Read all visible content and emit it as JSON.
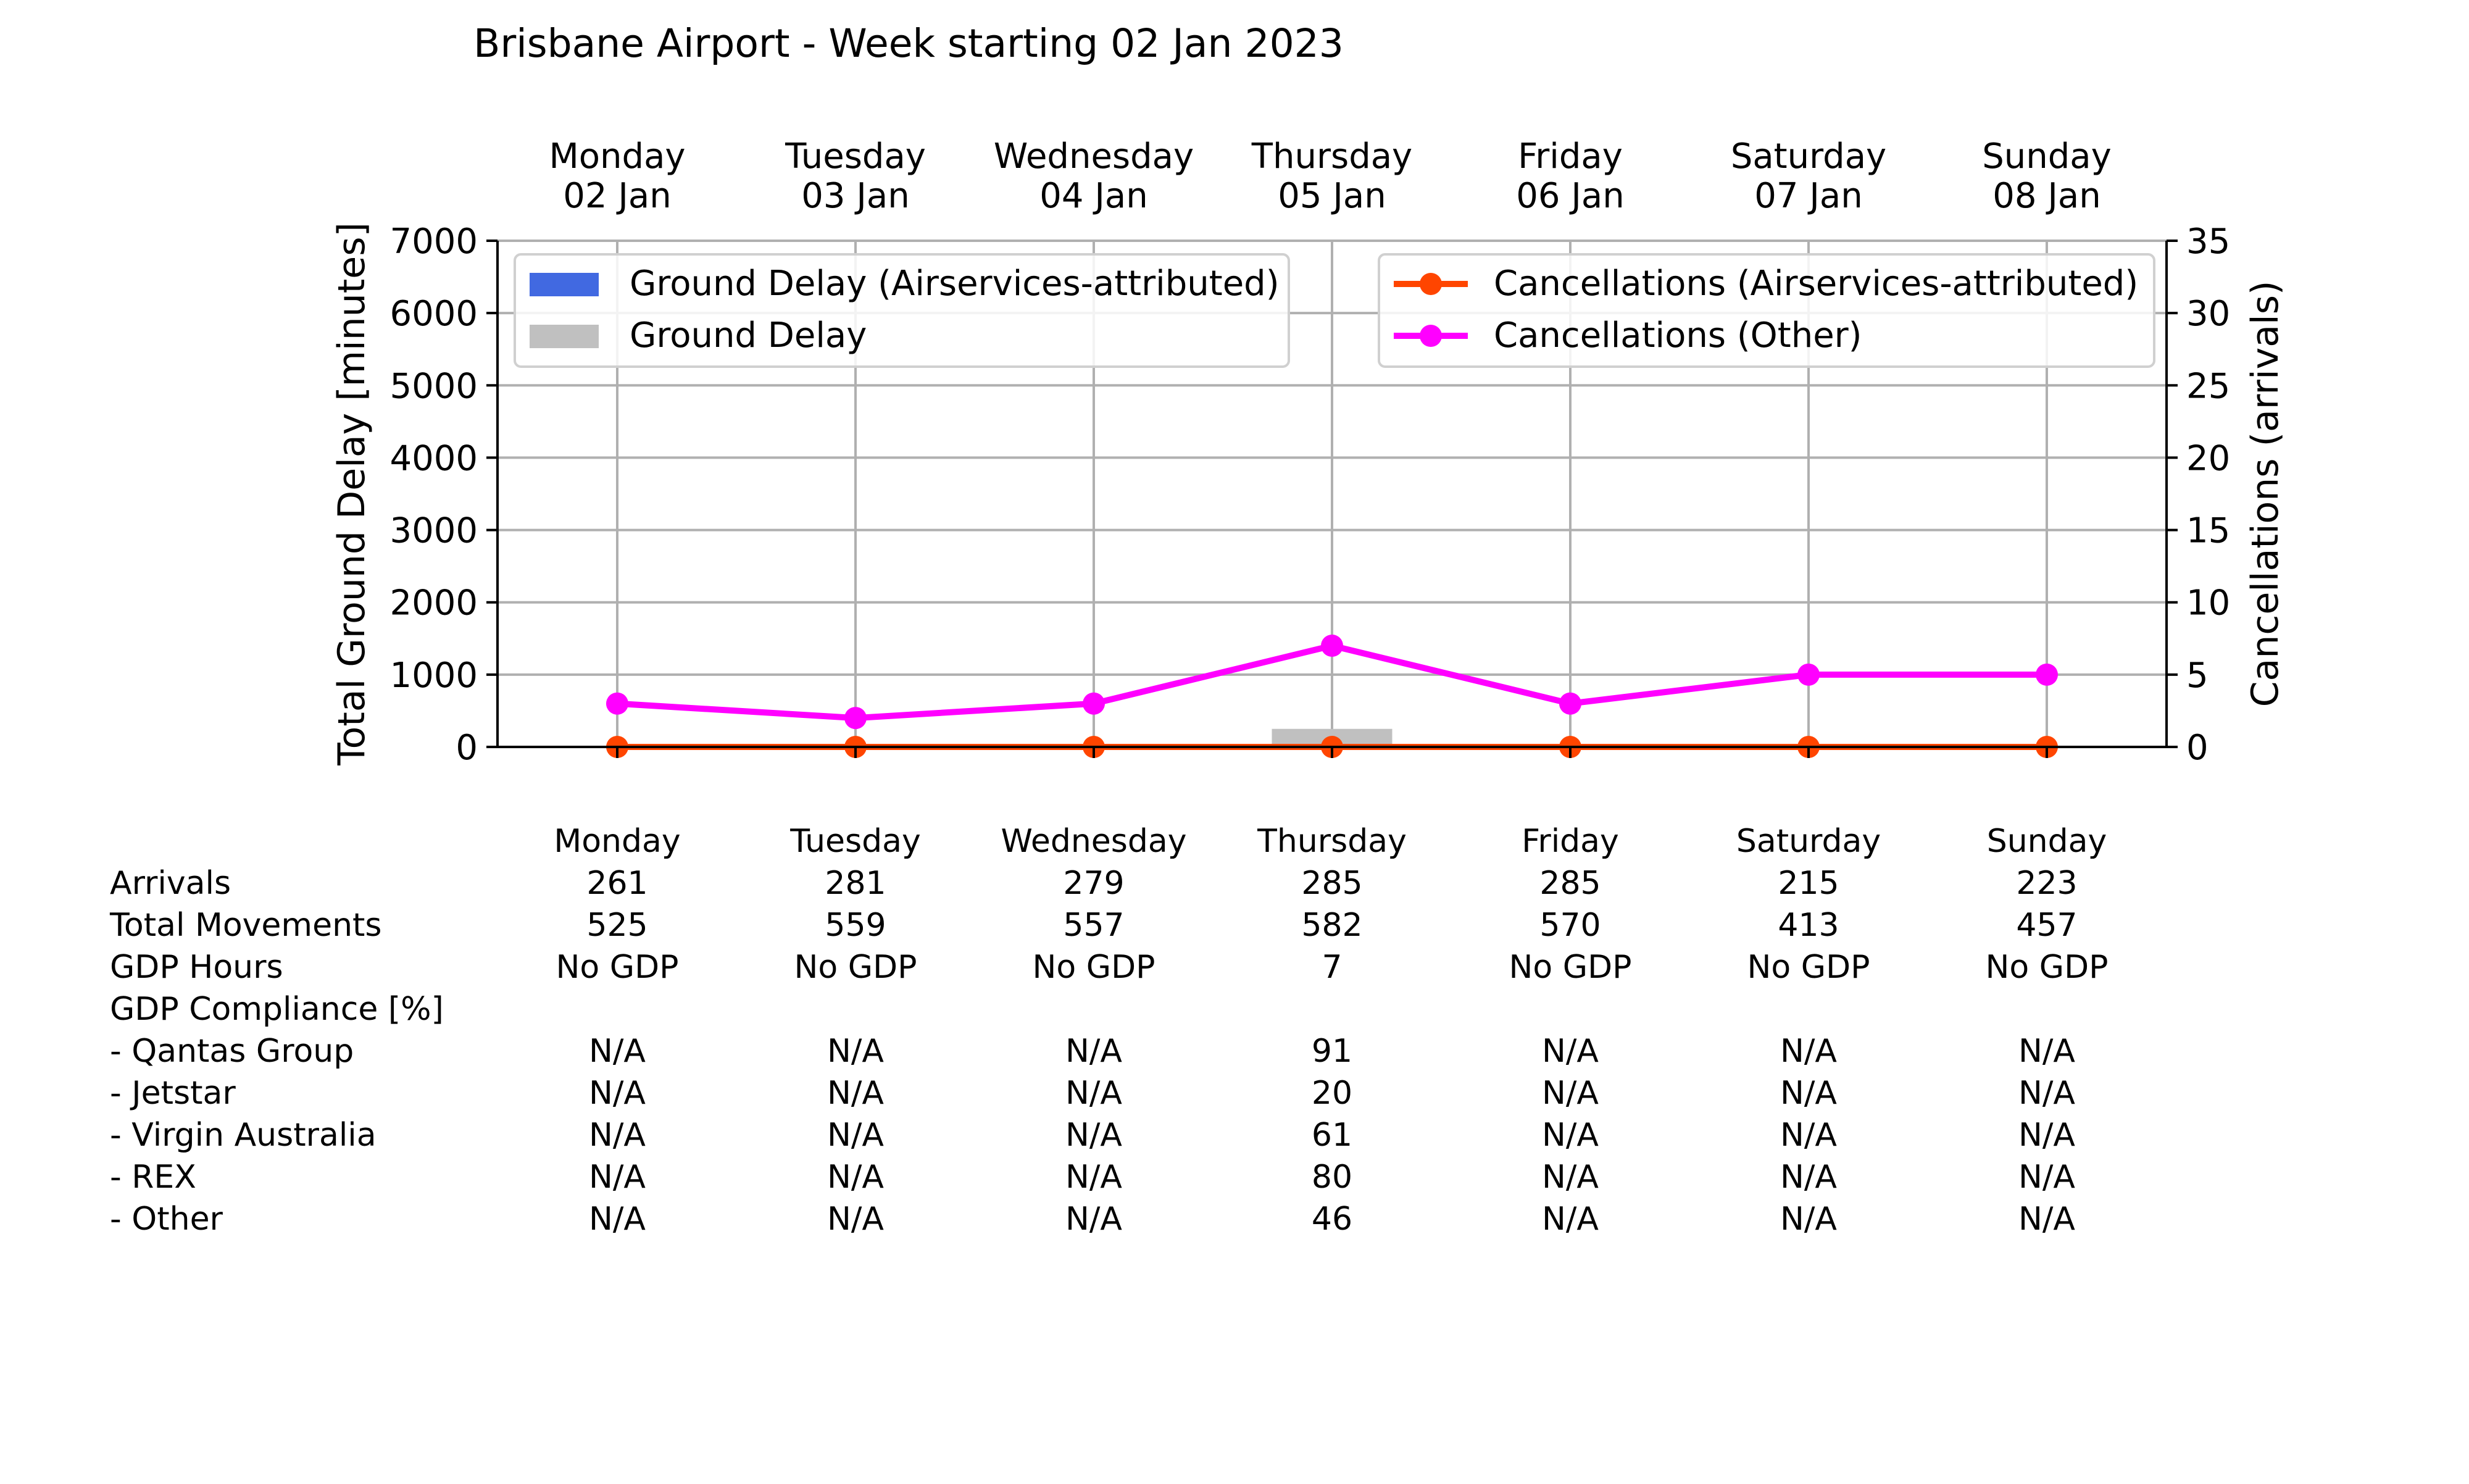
{
  "chart_data": {
    "type": "bar",
    "title": "Brisbane Airport - Week starting 02 Jan 2023",
    "days": [
      {
        "day": "Monday",
        "date": "02 Jan"
      },
      {
        "day": "Tuesday",
        "date": "03 Jan"
      },
      {
        "day": "Wednesday",
        "date": "04 Jan"
      },
      {
        "day": "Thursday",
        "date": "05 Jan"
      },
      {
        "day": "Friday",
        "date": "06 Jan"
      },
      {
        "day": "Saturday",
        "date": "07 Jan"
      },
      {
        "day": "Sunday",
        "date": "08 Jan"
      }
    ],
    "y_left": {
      "label": "Total Ground Delay [minutes]",
      "lim": [
        0,
        7000
      ],
      "ticks": [
        0,
        1000,
        2000,
        3000,
        4000,
        5000,
        6000,
        7000
      ]
    },
    "y_right": {
      "label": "Cancellations (arrivals)",
      "lim": [
        0,
        35
      ],
      "ticks": [
        0,
        5,
        10,
        15,
        20,
        25,
        30,
        35
      ]
    },
    "grid": true,
    "bar_series": [
      {
        "name": "Ground Delay (Airservices-attributed)",
        "color": "#4169E1",
        "values": [
          0,
          0,
          0,
          0,
          0,
          0,
          0
        ]
      },
      {
        "name": "Ground Delay",
        "color": "#C0C0C0",
        "values": [
          0,
          0,
          0,
          250,
          0,
          0,
          0
        ]
      }
    ],
    "line_series": [
      {
        "name": "Cancellations (Airservices-attributed)",
        "color": "#FF4500",
        "values": [
          0,
          0,
          0,
          0,
          0,
          0,
          0
        ]
      },
      {
        "name": "Cancellations (Other)",
        "color": "#FF00FF",
        "values": [
          3,
          2,
          3,
          7,
          3,
          5,
          5
        ]
      }
    ],
    "legend_left_placement": "top-left",
    "legend_right_placement": "top-right"
  },
  "table": {
    "header": [
      "Monday",
      "Tuesday",
      "Wednesday",
      "Thursday",
      "Friday",
      "Saturday",
      "Sunday"
    ],
    "rows": [
      {
        "label": "Arrivals",
        "values": [
          "261",
          "281",
          "279",
          "285",
          "285",
          "215",
          "223"
        ]
      },
      {
        "label": "Total Movements",
        "values": [
          "525",
          "559",
          "557",
          "582",
          "570",
          "413",
          "457"
        ]
      },
      {
        "label": "GDP Hours",
        "values": [
          "No GDP",
          "No GDP",
          "No GDP",
          "7",
          "No GDP",
          "No GDP",
          "No GDP"
        ]
      },
      {
        "label": "GDP Compliance [%]",
        "values": [
          "",
          "",
          "",
          "",
          "",
          "",
          ""
        ]
      },
      {
        "label": "  - Qantas Group",
        "values": [
          "N/A",
          "N/A",
          "N/A",
          "91",
          "N/A",
          "N/A",
          "N/A"
        ]
      },
      {
        "label": "  - Jetstar",
        "values": [
          "N/A",
          "N/A",
          "N/A",
          "20",
          "N/A",
          "N/A",
          "N/A"
        ]
      },
      {
        "label": "  - Virgin Australia",
        "values": [
          "N/A",
          "N/A",
          "N/A",
          "61",
          "N/A",
          "N/A",
          "N/A"
        ]
      },
      {
        "label": "  - REX",
        "values": [
          "N/A",
          "N/A",
          "N/A",
          "80",
          "N/A",
          "N/A",
          "N/A"
        ]
      },
      {
        "label": "  - Other",
        "values": [
          "N/A",
          "N/A",
          "N/A",
          "46",
          "N/A",
          "N/A",
          "N/A"
        ]
      }
    ]
  }
}
